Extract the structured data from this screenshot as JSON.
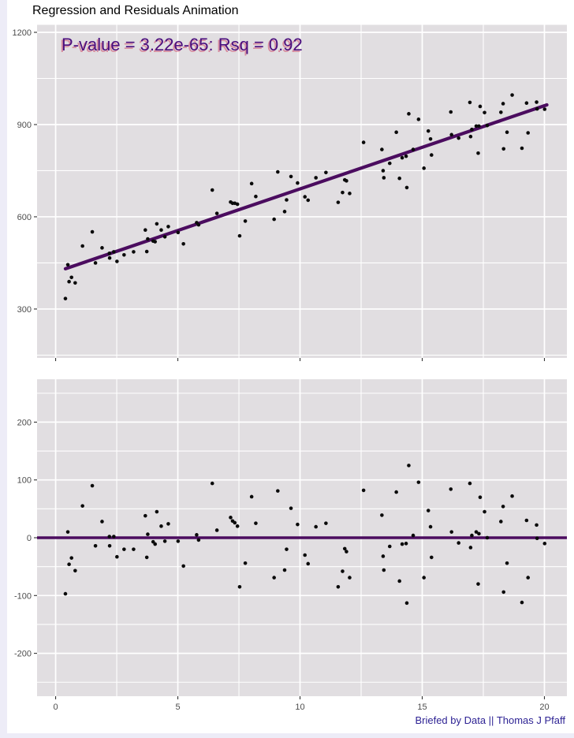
{
  "title": "Regression and Residuals Animation",
  "annotation": "P-value = 3.22e-65: Rsq = 0.92",
  "caption": "Briefed by Data || Thomas J Pfaff",
  "stats": {
    "p_value": "3.22e-65",
    "r_squared": "0.92"
  },
  "colors": {
    "page_bg": "#EDECF7",
    "plot_bg": "#FFFFFF",
    "panel_bg": "#E1DEE1",
    "grid": "#FFFFFF",
    "point": "#0A0A0A",
    "line": "#4B0C5F",
    "axis_text": "#4D4D4D",
    "tick": "#333333",
    "annotation_text": "#4A0E7E",
    "caption_text": "#2E2394",
    "title_text": "#000000"
  },
  "chart_data": [
    {
      "panel": "regression",
      "type": "scatter",
      "title": "Regression and Residuals Animation",
      "annotation": "P-value = 3.22e-65: Rsq = 0.92",
      "xlabel": "",
      "ylabel": "",
      "grid": true,
      "legend": "none",
      "xlim": [
        -0.76,
        20.92
      ],
      "ylim": [
        140.8,
        1224.4
      ],
      "x_ticks": [
        0,
        5,
        10,
        15,
        20
      ],
      "x_minor_ticks": [
        2.5,
        7.5,
        12.5,
        17.5
      ],
      "y_ticks": [
        300,
        600,
        900,
        1200
      ],
      "y_minor_ticks": [
        150,
        450,
        750,
        1050
      ],
      "x_tick_labels_visible": false,
      "regression_line": {
        "slope": 27.1,
        "intercept": 420,
        "x_start": 0.4,
        "y_start": 431,
        "x_end": 20.1,
        "y_end": 964
      },
      "x": [
        0.4,
        0.5,
        0.55,
        0.65,
        0.8,
        1.1,
        1.5,
        1.63,
        1.9,
        2.2,
        2.21,
        2.38,
        2.51,
        2.8,
        3.19,
        3.67,
        3.73,
        3.77,
        3.99,
        4.07,
        4.14,
        4.32,
        4.47,
        4.61,
        5.01,
        5.23,
        5.77,
        5.85,
        6.41,
        6.6,
        7.16,
        7.24,
        7.33,
        7.44,
        7.53,
        7.76,
        8.02,
        8.19,
        8.94,
        9.09,
        9.37,
        9.45,
        9.63,
        9.9,
        10.2,
        10.33,
        10.65,
        11.06,
        11.56,
        11.74,
        11.83,
        11.9,
        12.03,
        12.6,
        13.35,
        13.4,
        13.43,
        13.67,
        13.94,
        14.07,
        14.18,
        14.34,
        14.37,
        14.45,
        14.63,
        14.85,
        15.07,
        15.25,
        15.34,
        15.38,
        16.17,
        16.2,
        16.49,
        16.95,
        16.98,
        17.03,
        17.21,
        17.29,
        17.32,
        17.37,
        17.55,
        17.66,
        18.22,
        18.31,
        18.33,
        18.47,
        18.68,
        19.08,
        19.27,
        19.33,
        19.68,
        19.7,
        20.01
      ],
      "y": [
        334,
        444,
        389,
        403,
        385,
        505,
        551,
        450,
        499,
        481,
        466,
        486,
        455,
        476,
        486,
        557,
        487,
        528,
        521,
        519,
        577,
        557,
        535,
        568,
        549,
        512,
        581,
        574,
        687,
        611,
        648,
        644,
        644,
        641,
        538,
        586,
        708,
        666,
        592,
        746,
        617,
        655,
        731,
        710,
        665,
        654,
        727,
        744,
        647,
        679,
        720,
        717,
        676,
        842,
        819,
        750,
        727,
        774,
        875,
        725,
        792,
        797,
        695,
        935,
        819,
        917,
        758,
        879,
        853,
        801,
        941,
        867,
        856,
        972,
        861,
        884,
        895,
        807,
        895,
        959,
        939,
        897,
        940,
        968,
        821,
        875,
        996,
        823,
        970,
        873,
        973,
        951,
        950
      ]
    },
    {
      "panel": "residuals",
      "type": "scatter",
      "title": "",
      "xlabel": "",
      "ylabel": "",
      "grid": true,
      "legend": "none",
      "xlim": [
        -0.76,
        20.92
      ],
      "ylim": [
        -274.2,
        274.2
      ],
      "x_ticks": [
        0,
        5,
        10,
        15,
        20
      ],
      "x_minor_ticks": [
        2.5,
        7.5,
        12.5,
        17.5
      ],
      "y_ticks": [
        -200,
        -100,
        0,
        100,
        200
      ],
      "y_minor_ticks": [
        -250,
        -150,
        -50,
        50,
        150,
        250
      ],
      "x_tick_labels_visible": true,
      "zero_line_y": 0,
      "x": [
        0.4,
        0.5,
        0.55,
        0.65,
        0.8,
        1.1,
        1.5,
        1.63,
        1.9,
        2.2,
        2.21,
        2.38,
        2.51,
        2.8,
        3.19,
        3.67,
        3.73,
        3.77,
        3.99,
        4.07,
        4.14,
        4.32,
        4.47,
        4.61,
        5.01,
        5.23,
        5.77,
        5.85,
        6.41,
        6.6,
        7.16,
        7.24,
        7.33,
        7.44,
        7.53,
        7.76,
        8.02,
        8.19,
        8.94,
        9.09,
        9.37,
        9.45,
        9.63,
        9.9,
        10.2,
        10.33,
        10.65,
        11.06,
        11.56,
        11.74,
        11.83,
        11.9,
        12.03,
        12.6,
        13.35,
        13.4,
        13.43,
        13.67,
        13.94,
        14.07,
        14.18,
        14.34,
        14.37,
        14.45,
        14.63,
        14.85,
        15.07,
        15.25,
        15.34,
        15.38,
        16.17,
        16.2,
        16.49,
        16.95,
        16.98,
        17.03,
        17.21,
        17.29,
        17.32,
        17.37,
        17.55,
        17.66,
        18.22,
        18.31,
        18.33,
        18.47,
        18.68,
        19.08,
        19.27,
        19.33,
        19.68,
        19.7,
        20.01
      ],
      "y": [
        -97,
        10,
        -46,
        -35,
        -57,
        55,
        90,
        -14,
        28,
        2,
        -14,
        2,
        -33,
        -20,
        -20,
        38,
        -34,
        6,
        -7,
        -11,
        45,
        20,
        -6,
        24,
        -6,
        -49,
        5,
        -4,
        94,
        13,
        35,
        29,
        26,
        20,
        -85,
        -44,
        71,
        25,
        -69,
        81,
        -56,
        -20,
        51,
        23,
        -30,
        -45,
        19,
        25,
        -85,
        -58,
        -19,
        -24,
        -69,
        82,
        39,
        -32,
        -56,
        -15,
        79,
        -75,
        -11,
        -10,
        -113,
        125,
        4,
        96,
        -69,
        47,
        19,
        -34,
        84,
        10,
        -9,
        94,
        -17,
        4,
        10,
        -80,
        7,
        70,
        45,
        0,
        28,
        54,
        -94,
        -44,
        72,
        -112,
        30,
        -69,
        22,
        -1,
        -10
      ]
    }
  ]
}
